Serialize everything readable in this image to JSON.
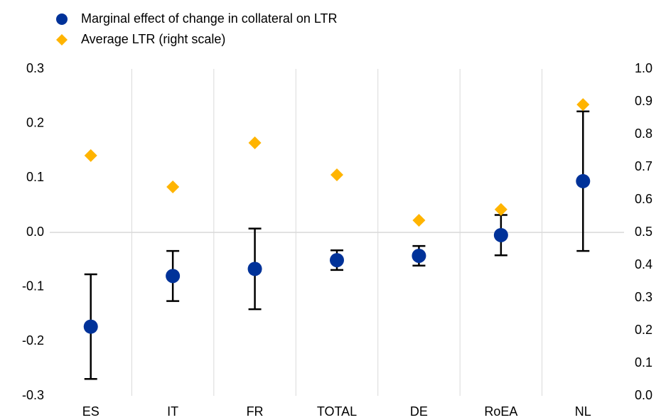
{
  "chart_data": {
    "type": "errorbar-dual",
    "categories": [
      "ES",
      "IT",
      "FR",
      "TOTAL",
      "DE",
      "RoEA",
      "NL"
    ],
    "series": [
      {
        "name": "Marginal effect of change in collateral on LTR",
        "color": "#003299",
        "marker": "circle",
        "values": [
          -0.173,
          -0.08,
          -0.067,
          -0.051,
          -0.043,
          -0.005,
          0.094
        ],
        "errors": [
          0.096,
          0.046,
          0.074,
          0.018,
          0.018,
          0.037,
          0.128
        ]
      },
      {
        "name": "Average LTR (right scale)",
        "color": "#ffb400",
        "marker": "diamond",
        "axis": "y2",
        "values": [
          0.735,
          0.639,
          0.774,
          0.676,
          0.537,
          0.57,
          0.891
        ]
      }
    ],
    "ylim": [
      -0.3,
      0.3
    ],
    "yticks": [
      -0.3,
      -0.2,
      -0.1,
      {
        "value": 0,
        "label": "0.0"
      },
      0.1,
      0.2,
      0.3
    ],
    "y2lim": [
      0,
      1
    ],
    "y2ticks": [
      {
        "value": 0,
        "label": "0.0"
      },
      0.1,
      0.2,
      0.3,
      0.4,
      0.5,
      0.6,
      0.7,
      0.8,
      0.9,
      {
        "value": 1,
        "label": "1.0"
      }
    ],
    "legend": "top-left"
  }
}
